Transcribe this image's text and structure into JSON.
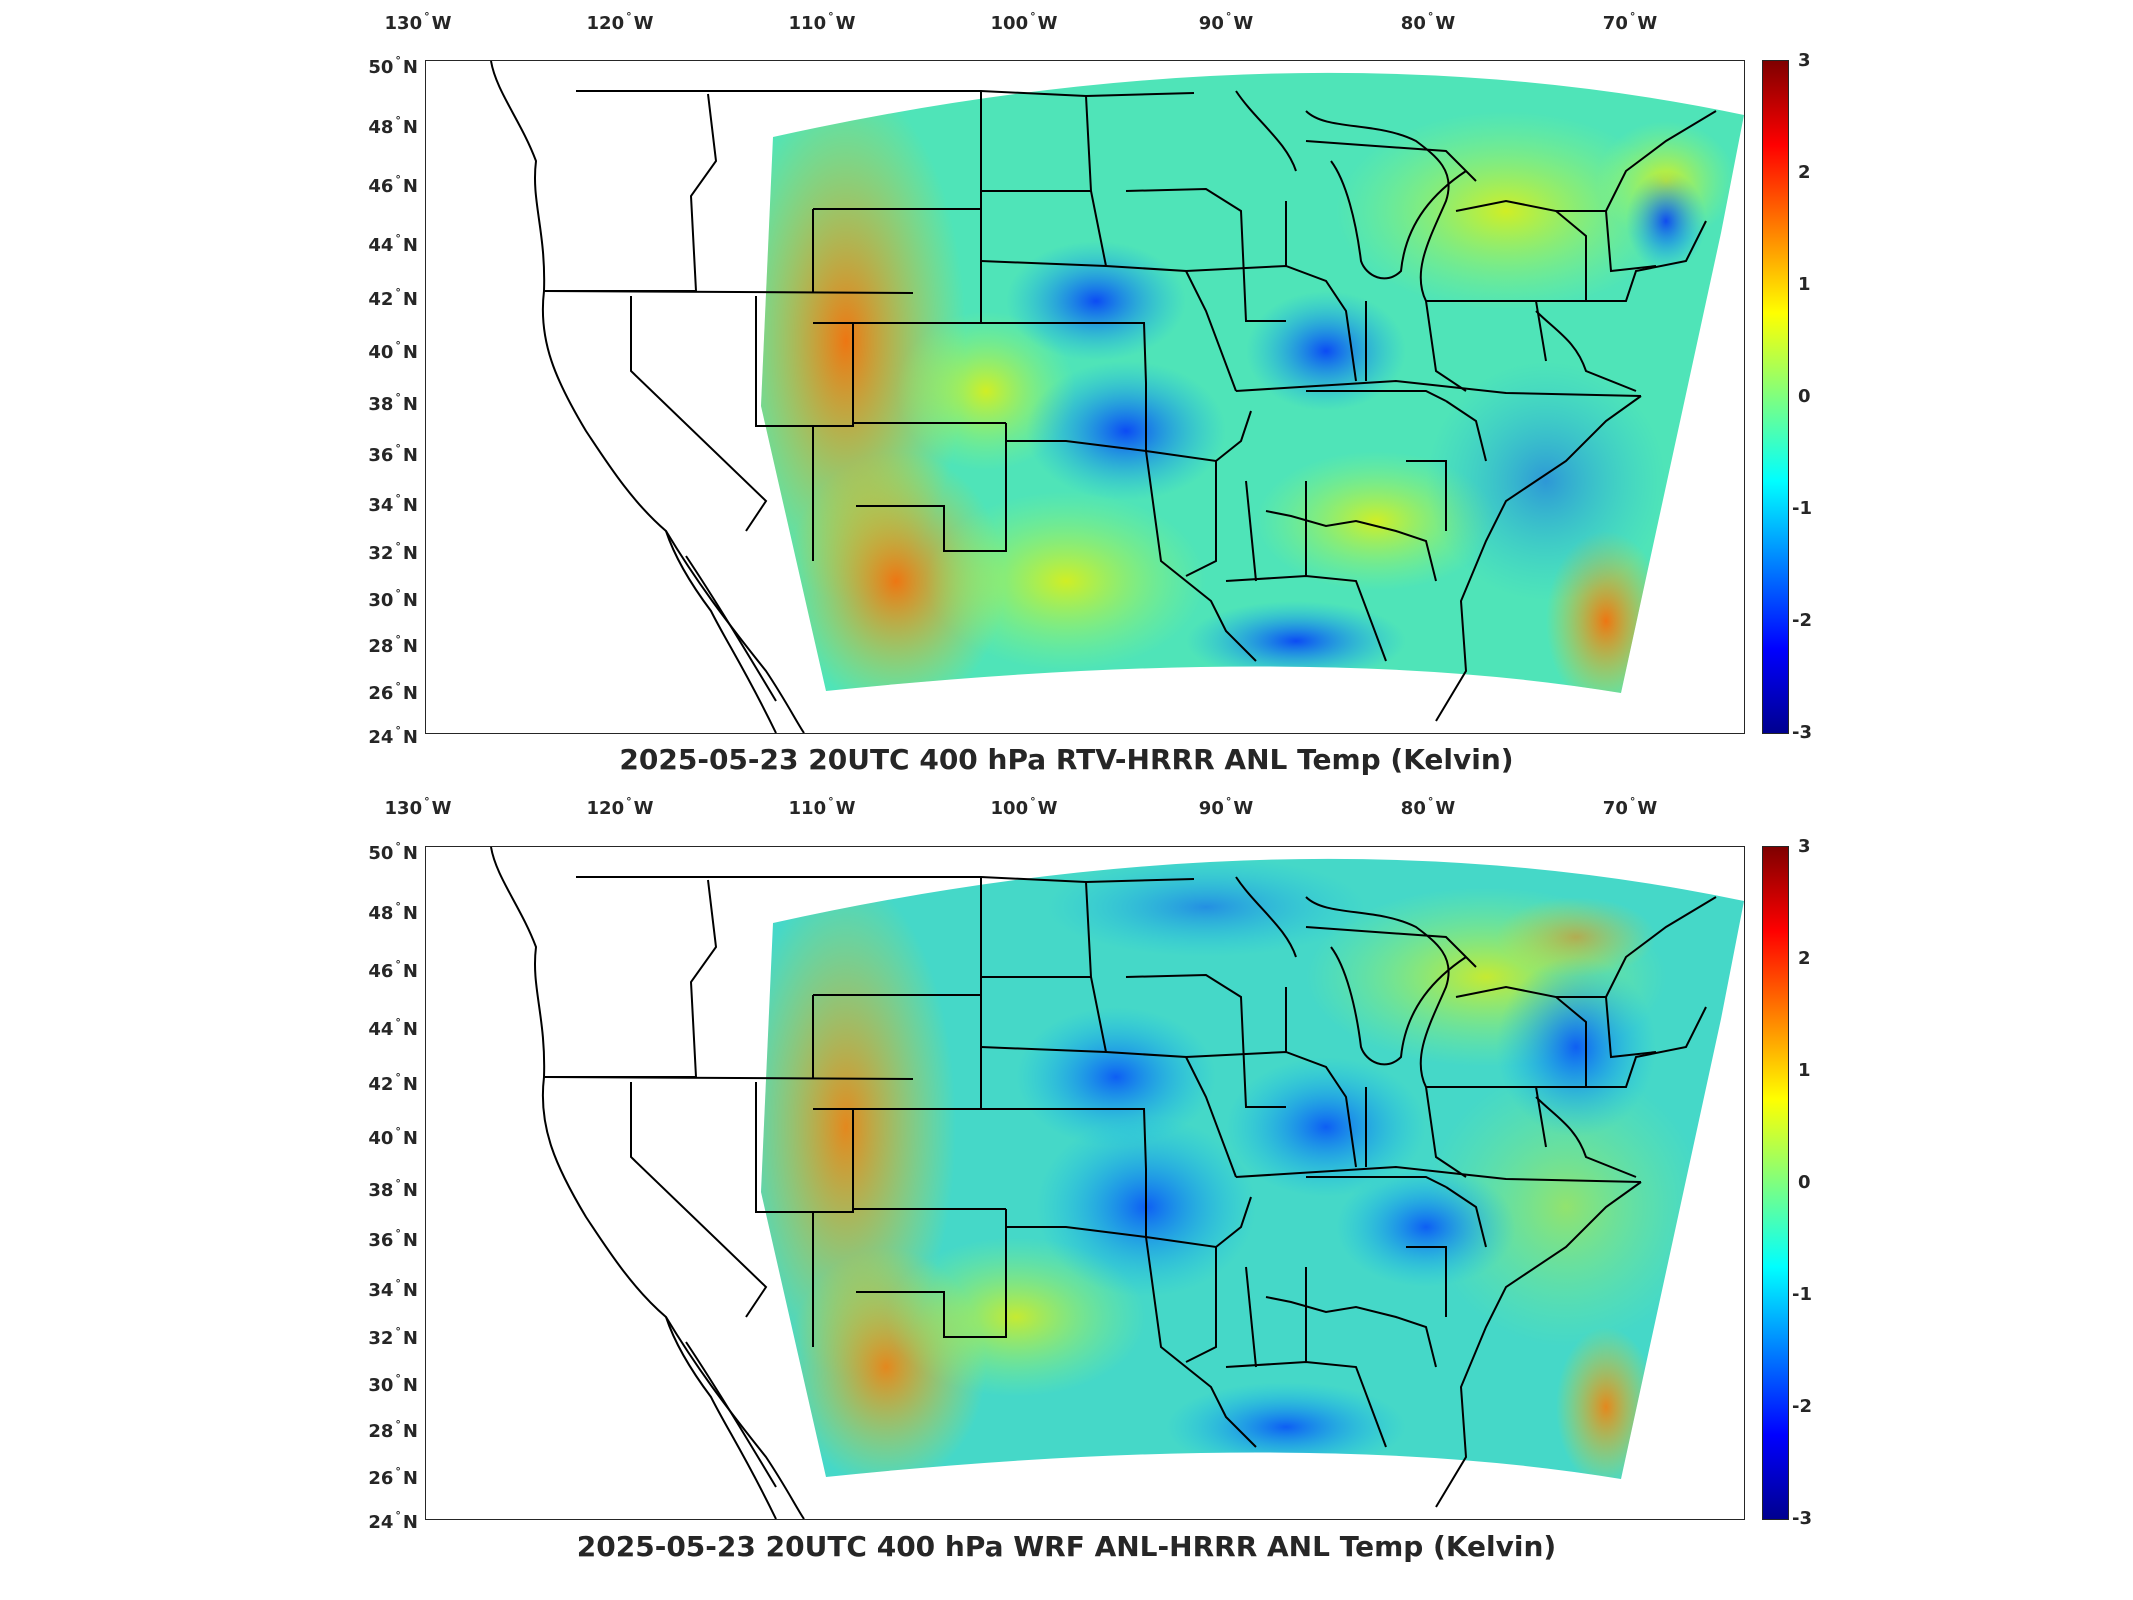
{
  "panels": [
    {
      "title": "2025-05-23 20UTC 400 hPa RTV-HRRR ANL Temp (Kelvin)",
      "lon_ticks": [
        "130",
        "120",
        "110",
        "100",
        "90",
        "80",
        "70"
      ],
      "lon_suffix": "W",
      "lat_ticks": [
        "50",
        "48",
        "46",
        "44",
        "42",
        "40",
        "38",
        "36",
        "34",
        "32",
        "30",
        "28",
        "26",
        "24"
      ],
      "lat_suffix": "N",
      "colorbar": {
        "ticks": [
          "3",
          "2",
          "1",
          "0",
          "-1",
          "-2",
          "-3"
        ],
        "range": [
          -3,
          3
        ],
        "colormap": "jet"
      }
    },
    {
      "title": "2025-05-23 20UTC 400 hPa WRF ANL-HRRR ANL Temp (Kelvin)",
      "lon_ticks": [
        "130",
        "120",
        "110",
        "100",
        "90",
        "80",
        "70"
      ],
      "lon_suffix": "W",
      "lat_ticks": [
        "50",
        "48",
        "46",
        "44",
        "42",
        "40",
        "38",
        "36",
        "34",
        "32",
        "30",
        "28",
        "26",
        "24"
      ],
      "lat_suffix": "N",
      "colorbar": {
        "ticks": [
          "3",
          "2",
          "1",
          "0",
          "-1",
          "-2",
          "-3"
        ],
        "range": [
          -3,
          3
        ],
        "colormap": "jet"
      }
    }
  ],
  "colors": {
    "field_base": "#3fe0c0",
    "frame": "#262626",
    "background": "#ffffff"
  }
}
